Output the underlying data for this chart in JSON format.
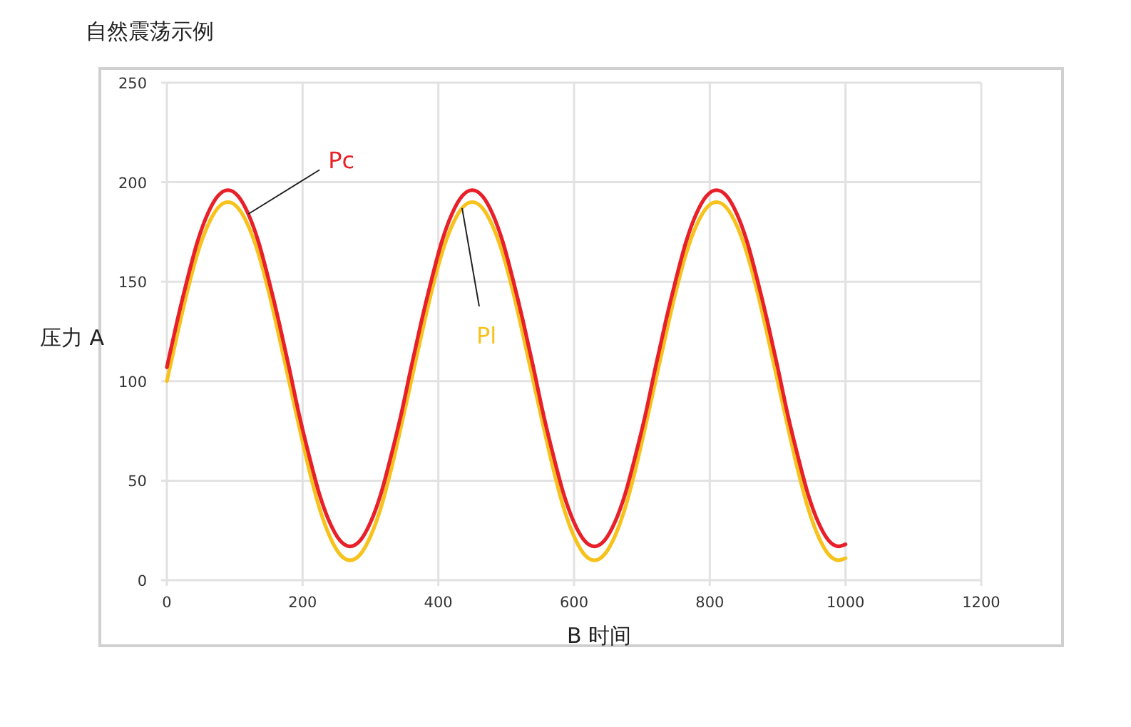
{
  "chart_data": {
    "type": "line",
    "title": "自然震荡示例",
    "xlabel": "B 时间",
    "ylabel": "压力 A",
    "x": [
      0,
      15,
      30,
      45,
      60,
      75,
      90,
      105,
      120,
      135,
      150,
      165,
      180,
      195,
      210,
      225,
      240,
      255,
      270,
      285,
      300,
      315,
      330,
      345,
      360,
      375,
      390,
      405,
      420,
      435,
      450,
      465,
      480,
      495,
      510,
      525,
      540,
      555,
      570,
      585,
      600,
      615,
      630,
      645,
      660,
      675,
      690,
      705,
      720,
      735,
      750,
      765,
      780,
      795,
      810,
      825,
      840,
      855,
      870,
      885,
      900,
      915,
      930,
      945,
      960,
      975,
      990,
      1000
    ],
    "series": [
      {
        "name": "Pl",
        "color": "#f7c21c",
        "values": [
          100,
          123,
          145,
          164,
          178,
          187,
          190,
          187,
          178,
          164,
          145,
          123,
          100,
          77,
          55,
          36,
          22,
          13,
          10,
          13,
          22,
          36,
          55,
          77,
          100,
          123,
          145,
          164,
          178,
          187,
          190,
          187,
          178,
          164,
          145,
          123,
          100,
          77,
          55,
          36,
          22,
          13,
          10,
          13,
          22,
          36,
          55,
          77,
          100,
          123,
          145,
          164,
          178,
          187,
          190,
          187,
          178,
          164,
          145,
          123,
          100,
          77,
          55,
          36,
          22,
          13,
          10,
          11
        ]
      },
      {
        "name": "Pc",
        "color": "#e8202a",
        "values": [
          107,
          130,
          151,
          170,
          184,
          193,
          196,
          193,
          184,
          170,
          151,
          130,
          107,
          83,
          62,
          43,
          29,
          20,
          17,
          20,
          29,
          43,
          62,
          83,
          107,
          130,
          151,
          170,
          184,
          193,
          196,
          193,
          184,
          170,
          151,
          130,
          107,
          83,
          62,
          43,
          29,
          20,
          17,
          20,
          29,
          43,
          62,
          83,
          107,
          130,
          151,
          170,
          184,
          193,
          196,
          193,
          184,
          170,
          151,
          130,
          107,
          83,
          62,
          43,
          29,
          20,
          17,
          18
        ]
      }
    ],
    "xlim": [
      0,
      1200
    ],
    "ylim": [
      0,
      250
    ],
    "xticks": [
      0,
      200,
      400,
      600,
      800,
      1000,
      1200
    ],
    "yticks": [
      0,
      50,
      100,
      150,
      200,
      250
    ],
    "grid": true,
    "legend": false,
    "marker": "none",
    "line_style": "solid"
  }
}
